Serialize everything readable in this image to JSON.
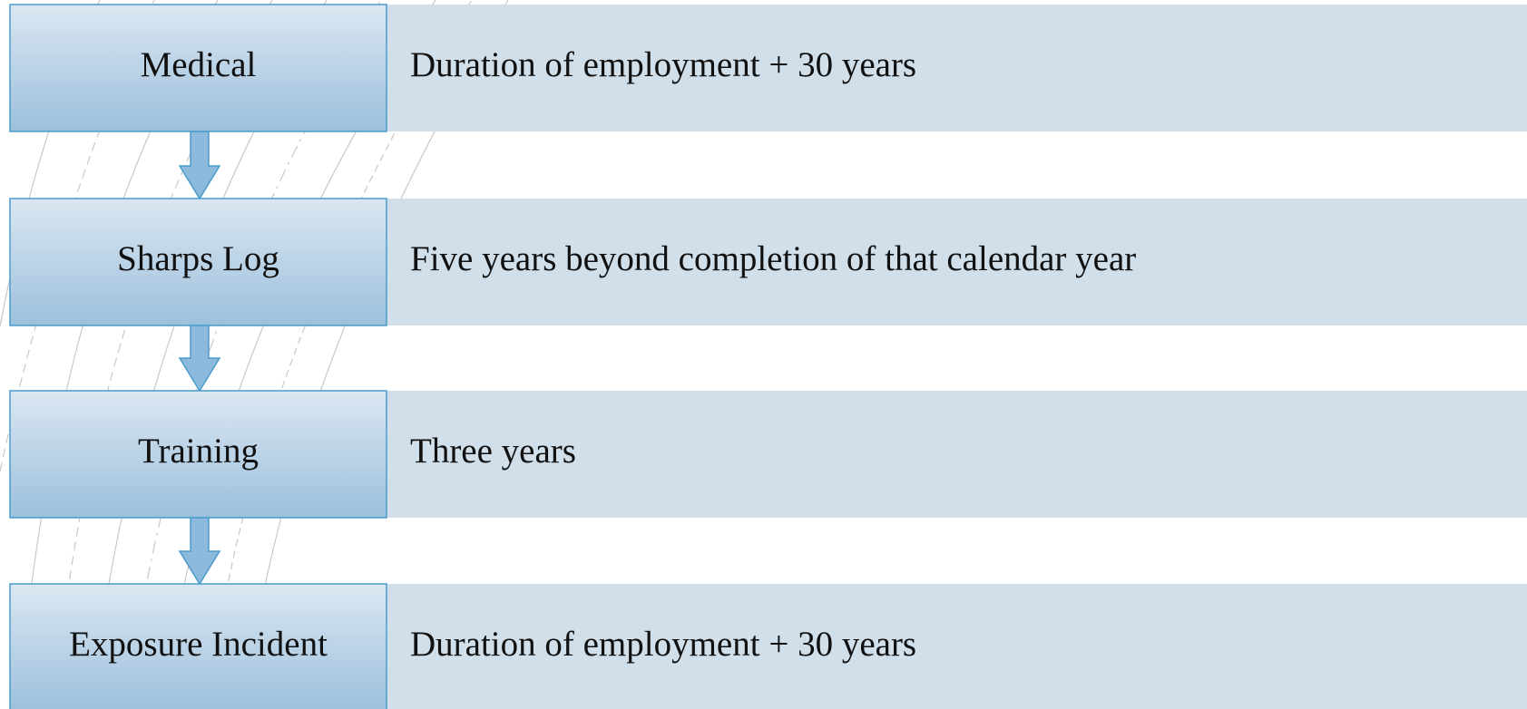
{
  "rows": [
    {
      "label": "Medical",
      "text": "Duration of employment + 30 years"
    },
    {
      "label": "Sharps Log",
      "text": "Five years beyond completion of that calendar year"
    },
    {
      "label": "Training",
      "text": "Three years"
    },
    {
      "label": "Exposure Incident",
      "text": "Duration of employment + 30 years"
    }
  ]
}
